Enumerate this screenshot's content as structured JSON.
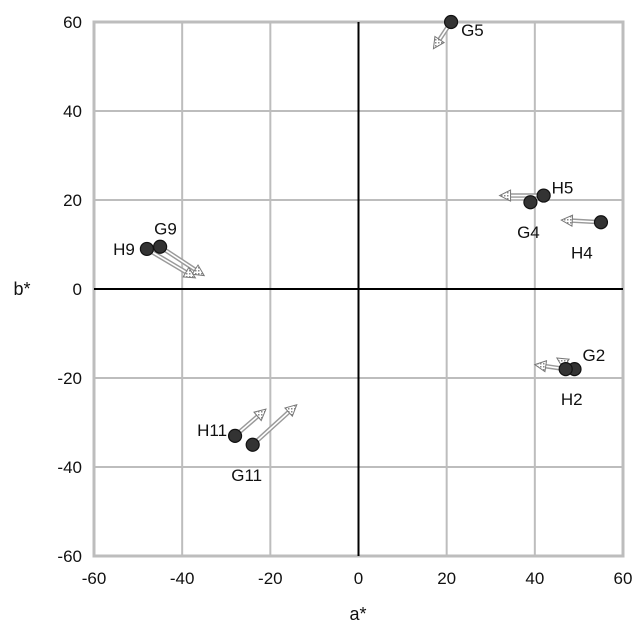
{
  "chart_data": {
    "type": "scatter",
    "title": "",
    "xlabel": "a*",
    "ylabel": "b*",
    "xlim": [
      -60,
      60
    ],
    "ylim": [
      -60,
      60
    ],
    "xticks": [
      -60,
      -40,
      -20,
      0,
      20,
      40,
      60
    ],
    "yticks": [
      -60,
      -40,
      -20,
      0,
      20,
      40,
      60
    ],
    "grid": true,
    "colors": {
      "point": "#333333",
      "arrow": "#9a9a9a",
      "grid": "#bdbdbd",
      "axis": "#000000"
    },
    "points": [
      {
        "label": "G5",
        "x": 21,
        "y": 60,
        "arrow_to": [
          17,
          54
        ]
      },
      {
        "label": "H5",
        "x": 42,
        "y": 21,
        "arrow_to": [
          32,
          21
        ]
      },
      {
        "label": "G4",
        "x": 39,
        "y": 19.5,
        "arrow_to": null
      },
      {
        "label": "H4",
        "x": 55,
        "y": 15,
        "arrow_to": [
          46,
          15.5
        ]
      },
      {
        "label": "G9",
        "x": -45,
        "y": 9.5,
        "arrow_to": [
          -35,
          3
        ]
      },
      {
        "label": "H9",
        "x": -48,
        "y": 9,
        "arrow_to": [
          -37,
          2.5
        ]
      },
      {
        "label": "G2",
        "x": 49,
        "y": -18,
        "arrow_to": [
          45,
          -15.5
        ]
      },
      {
        "label": "H2",
        "x": 47,
        "y": -18,
        "arrow_to": [
          40,
          -17
        ]
      },
      {
        "label": "H11",
        "x": -28,
        "y": -33,
        "arrow_to": [
          -21,
          -27
        ]
      },
      {
        "label": "G11",
        "x": -24,
        "y": -35,
        "arrow_to": [
          -14,
          -26
        ]
      }
    ]
  }
}
